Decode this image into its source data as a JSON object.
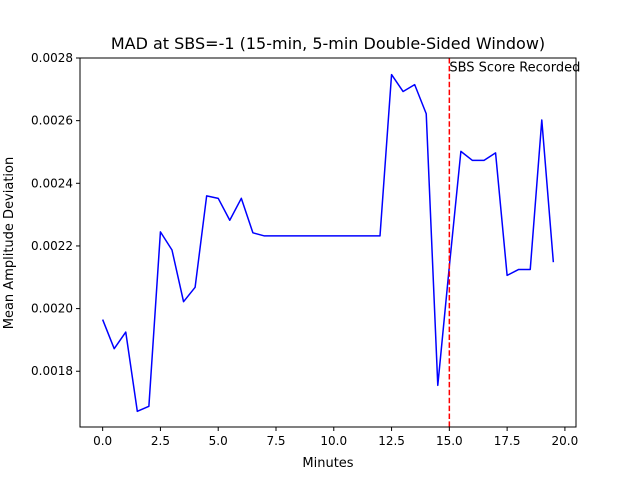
{
  "chart_data": {
    "type": "line",
    "title": "MAD at SBS=-1 (15-min, 5-min Double-Sided Window)",
    "xlabel": "Minutes",
    "ylabel": "Mean Amplitude Deviation",
    "xlim": [
      -0.98,
      20.48
    ],
    "ylim": [
      0.001622,
      0.0028
    ],
    "x_ticks": [
      0.0,
      2.5,
      5.0,
      7.5,
      10.0,
      12.5,
      15.0,
      17.5,
      20.0
    ],
    "x_tick_labels": [
      "0.0",
      "2.5",
      "5.0",
      "7.5",
      "10.0",
      "12.5",
      "15.0",
      "17.5",
      "20.0"
    ],
    "y_ticks": [
      0.0018,
      0.002,
      0.0022,
      0.0024,
      0.0026,
      0.0028
    ],
    "y_tick_labels": [
      "0.0018",
      "0.0020",
      "0.0022",
      "0.0024",
      "0.0026",
      "0.0028"
    ],
    "grid": false,
    "series": [
      {
        "color": "#0000ff",
        "x": [
          0,
          0.5,
          1,
          1.5,
          2,
          2.5,
          3,
          3.5,
          4,
          4.5,
          5,
          5.5,
          6,
          6.5,
          7,
          7.5,
          8,
          8.5,
          9,
          9.5,
          10,
          10.5,
          11,
          11.5,
          12,
          12.5,
          13,
          13.5,
          14,
          14.5,
          15,
          15.5,
          16,
          16.5,
          17,
          17.5,
          18,
          18.5,
          19,
          19.5
        ],
        "y": [
          0.001965,
          0.001872,
          0.001925,
          0.001672,
          0.001688,
          0.002245,
          0.002187,
          0.002022,
          0.002068,
          0.00236,
          0.002352,
          0.002282,
          0.002352,
          0.002242,
          0.002232,
          0.002232,
          0.002232,
          0.002232,
          0.002232,
          0.002232,
          0.002232,
          0.002232,
          0.002232,
          0.002232,
          0.002232,
          0.002747,
          0.002693,
          0.002715,
          0.002622,
          0.001755,
          0.002135,
          0.002502,
          0.002473,
          0.002473,
          0.002497,
          0.002106,
          0.002125,
          0.002125,
          0.002602,
          0.002148
        ]
      }
    ],
    "vline": {
      "x": 15,
      "color": "#ff0000",
      "style": "dashed"
    },
    "annotation": {
      "text": "SBS Score Recorded",
      "x": 15,
      "y": 0.00277
    }
  }
}
